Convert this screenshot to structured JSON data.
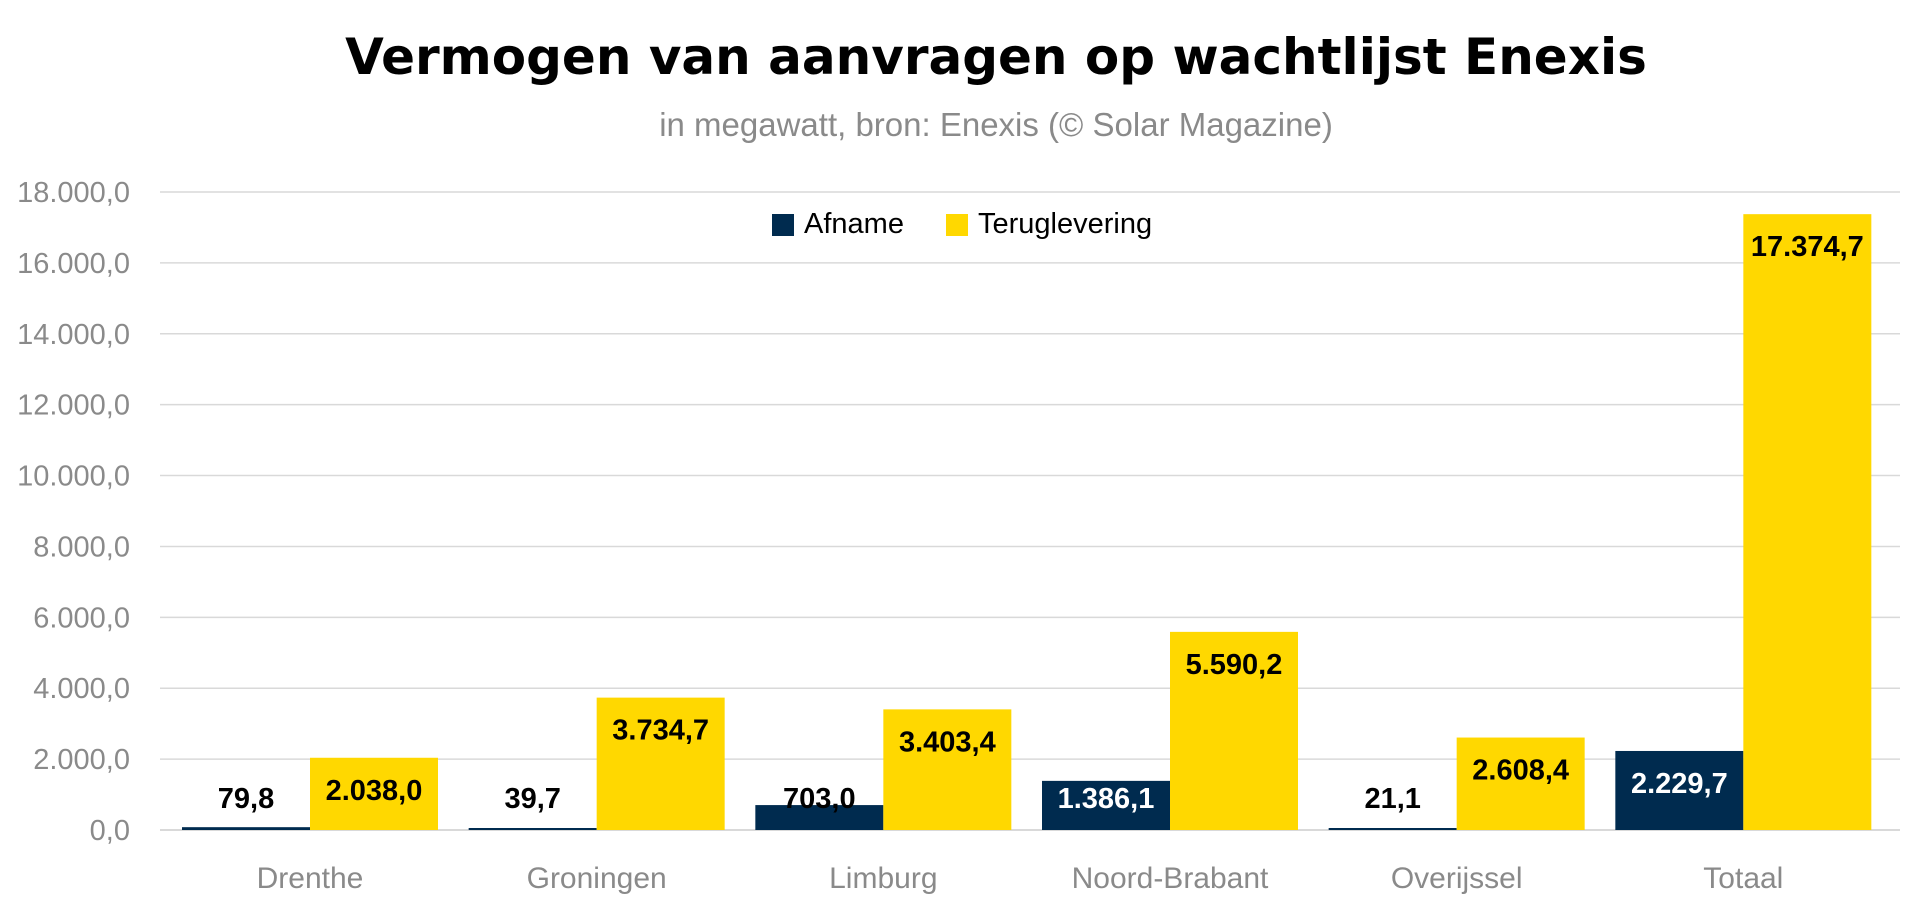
{
  "chart_data": {
    "type": "bar",
    "title": "Vermogen van aanvragen op wachtlijst Enexis",
    "subtitle": "in megawatt, bron: Enexis (© Solar Magazine)",
    "categories": [
      "Drenthe",
      "Groningen",
      "Limburg",
      "Noord-Brabant",
      "Overijssel",
      "Totaal"
    ],
    "series": [
      {
        "name": "Afname",
        "color": "#002b4f",
        "values": [
          79.8,
          39.7,
          703.0,
          1386.1,
          21.1,
          2229.7
        ],
        "labels": [
          "79,8",
          "39,7",
          "703,0",
          "1.386,1",
          "21,1",
          "2.229,7"
        ],
        "label_colors": [
          "#000000",
          "#000000",
          "#000000",
          "#ffffff",
          "#000000",
          "#ffffff"
        ]
      },
      {
        "name": "Teruglevering",
        "color": "#ffd800",
        "values": [
          2038.0,
          3734.7,
          3403.4,
          5590.2,
          2608.4,
          17374.7
        ],
        "labels": [
          "2.038,0",
          "3.734,7",
          "3.403,4",
          "5.590,2",
          "2.608,4",
          "17.374,7"
        ],
        "label_colors": [
          "#000000",
          "#000000",
          "#000000",
          "#000000",
          "#000000",
          "#000000"
        ]
      }
    ],
    "yticks": [
      "0,0",
      "2.000,0",
      "4.000,0",
      "6.000,0",
      "8.000,0",
      "10.000,0",
      "12.000,0",
      "14.000,0",
      "16.000,0",
      "18.000,0"
    ],
    "ylim": [
      0,
      18000
    ],
    "grid": true,
    "legend_position": "top-center"
  }
}
